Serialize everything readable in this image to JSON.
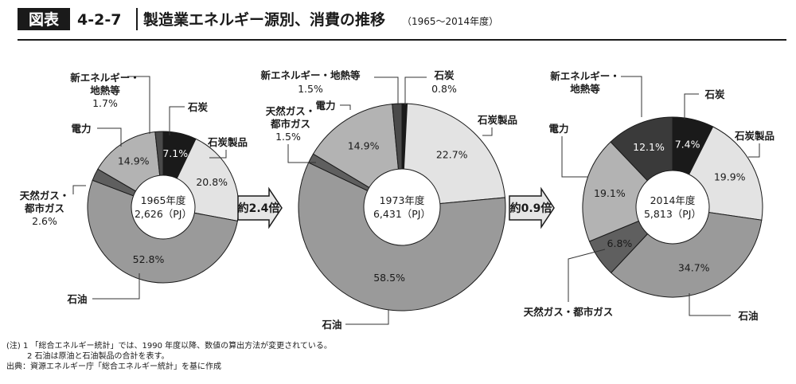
{
  "header": {
    "badge": "図表",
    "number": "4-2-7",
    "title": "製造業エネルギー源別、消費の推移",
    "subtitle": "（1965～2014年度）"
  },
  "arrows": [
    "約2.4倍",
    "約0.9倍"
  ],
  "notes": {
    "note1": "(注)  1 「総合エネルギー統計」では、1990 年度以降、数値の算出方法が変更されている。",
    "note2": "2  石油は原油と石油製品の合計を表す。",
    "source": "出典：資源エネルギー庁「総合エネルギー統計」を基に作成"
  },
  "colors": {
    "coal": "#1a1a1a",
    "coal_products": "#e3e3e3",
    "oil": "#9a9a9a",
    "gas": "#5f5f5f",
    "electricity": "#b3b3b3",
    "new_energy_1965": "#4a4a4a",
    "new_energy_1973": "#4a4a4a",
    "new_energy_2014": "#3a3a3a"
  },
  "chart_data": [
    {
      "type": "pie",
      "center_label": [
        "1965年度",
        "2,626（PJ）"
      ],
      "slices": [
        {
          "label": "石炭",
          "value": 7.1,
          "value_text": "7.1%",
          "color_key": "coal"
        },
        {
          "label": "石炭製品",
          "value": 20.8,
          "value_text": "20.8%",
          "color_key": "coal_products"
        },
        {
          "label": "石油",
          "value": 52.8,
          "value_text": "52.8%",
          "color_key": "oil"
        },
        {
          "label": "天然ガス・都市ガス",
          "value": 2.6,
          "value_text": "2.6%",
          "color_key": "gas"
        },
        {
          "label": "電力",
          "value": 14.9,
          "value_text": "14.9%",
          "color_key": "electricity"
        },
        {
          "label": "新エネルギー・地熱等",
          "value": 1.7,
          "value_text": "1.7%",
          "color_key": "new_energy_1965"
        }
      ]
    },
    {
      "type": "pie",
      "center_label": [
        "1973年度",
        "6,431（PJ）"
      ],
      "slices": [
        {
          "label": "石炭",
          "value": 0.8,
          "value_text": "0.8%",
          "color_key": "coal"
        },
        {
          "label": "石炭製品",
          "value": 22.7,
          "value_text": "22.7%",
          "color_key": "coal_products"
        },
        {
          "label": "石油",
          "value": 58.5,
          "value_text": "58.5%",
          "color_key": "oil"
        },
        {
          "label": "天然ガス・都市ガス",
          "value": 1.5,
          "value_text": "1.5%",
          "color_key": "gas"
        },
        {
          "label": "電力",
          "value": 14.9,
          "value_text": "14.9%",
          "color_key": "electricity"
        },
        {
          "label": "新エネルギー・地熱等",
          "value": 1.5,
          "value_text": "1.5%",
          "color_key": "new_energy_1973"
        }
      ]
    },
    {
      "type": "pie",
      "center_label": [
        "2014年度",
        "5,813（PJ）"
      ],
      "slices": [
        {
          "label": "石炭",
          "value": 7.4,
          "value_text": "7.4%",
          "color_key": "coal"
        },
        {
          "label": "石炭製品",
          "value": 19.9,
          "value_text": "19.9%",
          "color_key": "coal_products"
        },
        {
          "label": "石油",
          "value": 34.7,
          "value_text": "34.7%",
          "color_key": "oil"
        },
        {
          "label": "天然ガス・都市ガス",
          "value": 6.8,
          "value_text": "6.8%",
          "color_key": "gas"
        },
        {
          "label": "電力",
          "value": 19.1,
          "value_text": "19.1%",
          "color_key": "electricity"
        },
        {
          "label": "新エネルギー・地熱等",
          "value": 12.1,
          "value_text": "12.1%",
          "color_key": "new_energy_2014"
        }
      ]
    }
  ]
}
